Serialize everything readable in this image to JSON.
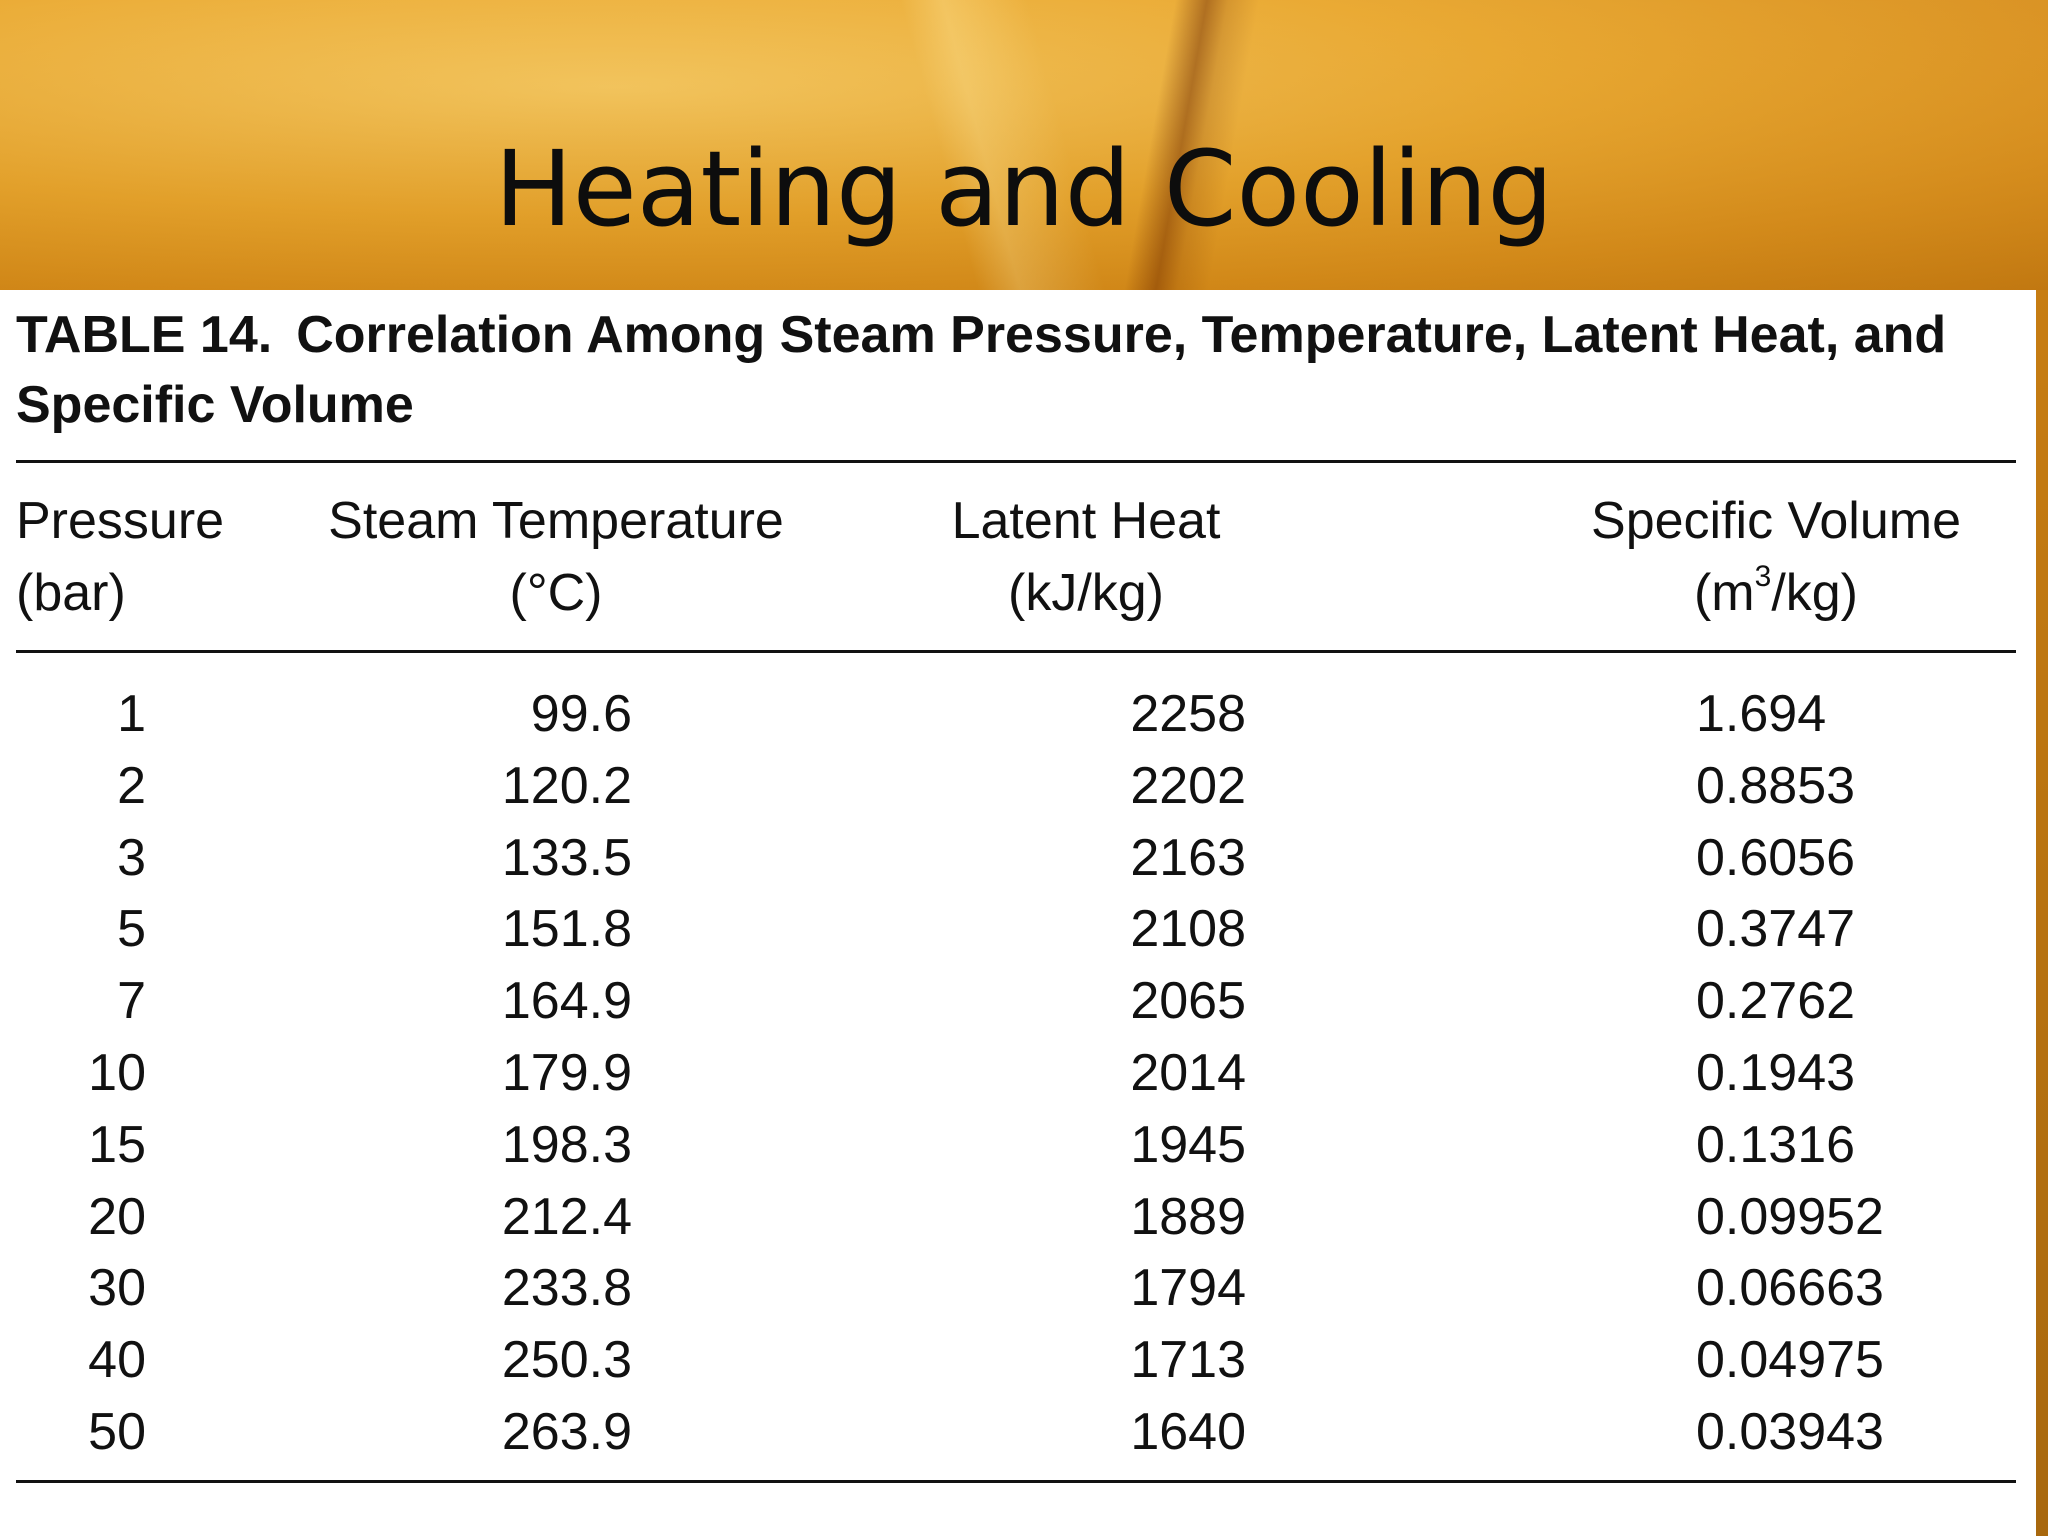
{
  "slide": {
    "title": "Heating and Cooling"
  },
  "table": {
    "label": "TABLE 14.",
    "caption": "Correlation Among Steam Pressure, Temperature, Latent Heat, and Specific Volume",
    "columns": [
      {
        "name": "Pressure",
        "unit": "(bar)"
      },
      {
        "name": "Steam Temperature",
        "unit": "(°C)"
      },
      {
        "name": "Latent Heat",
        "unit": "(kJ/kg)"
      },
      {
        "name": "Specific Volume",
        "unit_pre": "(m",
        "unit_sup": "3",
        "unit_post": "/kg)"
      }
    ],
    "rows": [
      {
        "pressure": "1",
        "temperature": "99.6",
        "latent_heat": "2258",
        "specific_volume": "1.694"
      },
      {
        "pressure": "2",
        "temperature": "120.2",
        "latent_heat": "2202",
        "specific_volume": "0.8853"
      },
      {
        "pressure": "3",
        "temperature": "133.5",
        "latent_heat": "2163",
        "specific_volume": "0.6056"
      },
      {
        "pressure": "5",
        "temperature": "151.8",
        "latent_heat": "2108",
        "specific_volume": "0.3747"
      },
      {
        "pressure": "7",
        "temperature": "164.9",
        "latent_heat": "2065",
        "specific_volume": "0.2762"
      },
      {
        "pressure": "10",
        "temperature": "179.9",
        "latent_heat": "2014",
        "specific_volume": "0.1943"
      },
      {
        "pressure": "15",
        "temperature": "198.3",
        "latent_heat": "1945",
        "specific_volume": "0.1316"
      },
      {
        "pressure": "20",
        "temperature": "212.4",
        "latent_heat": "1889",
        "specific_volume": "0.09952"
      },
      {
        "pressure": "30",
        "temperature": "233.8",
        "latent_heat": "1794",
        "specific_volume": "0.06663"
      },
      {
        "pressure": "40",
        "temperature": "250.3",
        "latent_heat": "1713",
        "specific_volume": "0.04975"
      },
      {
        "pressure": "50",
        "temperature": "263.9",
        "latent_heat": "1640",
        "specific_volume": "0.03943"
      }
    ]
  }
}
